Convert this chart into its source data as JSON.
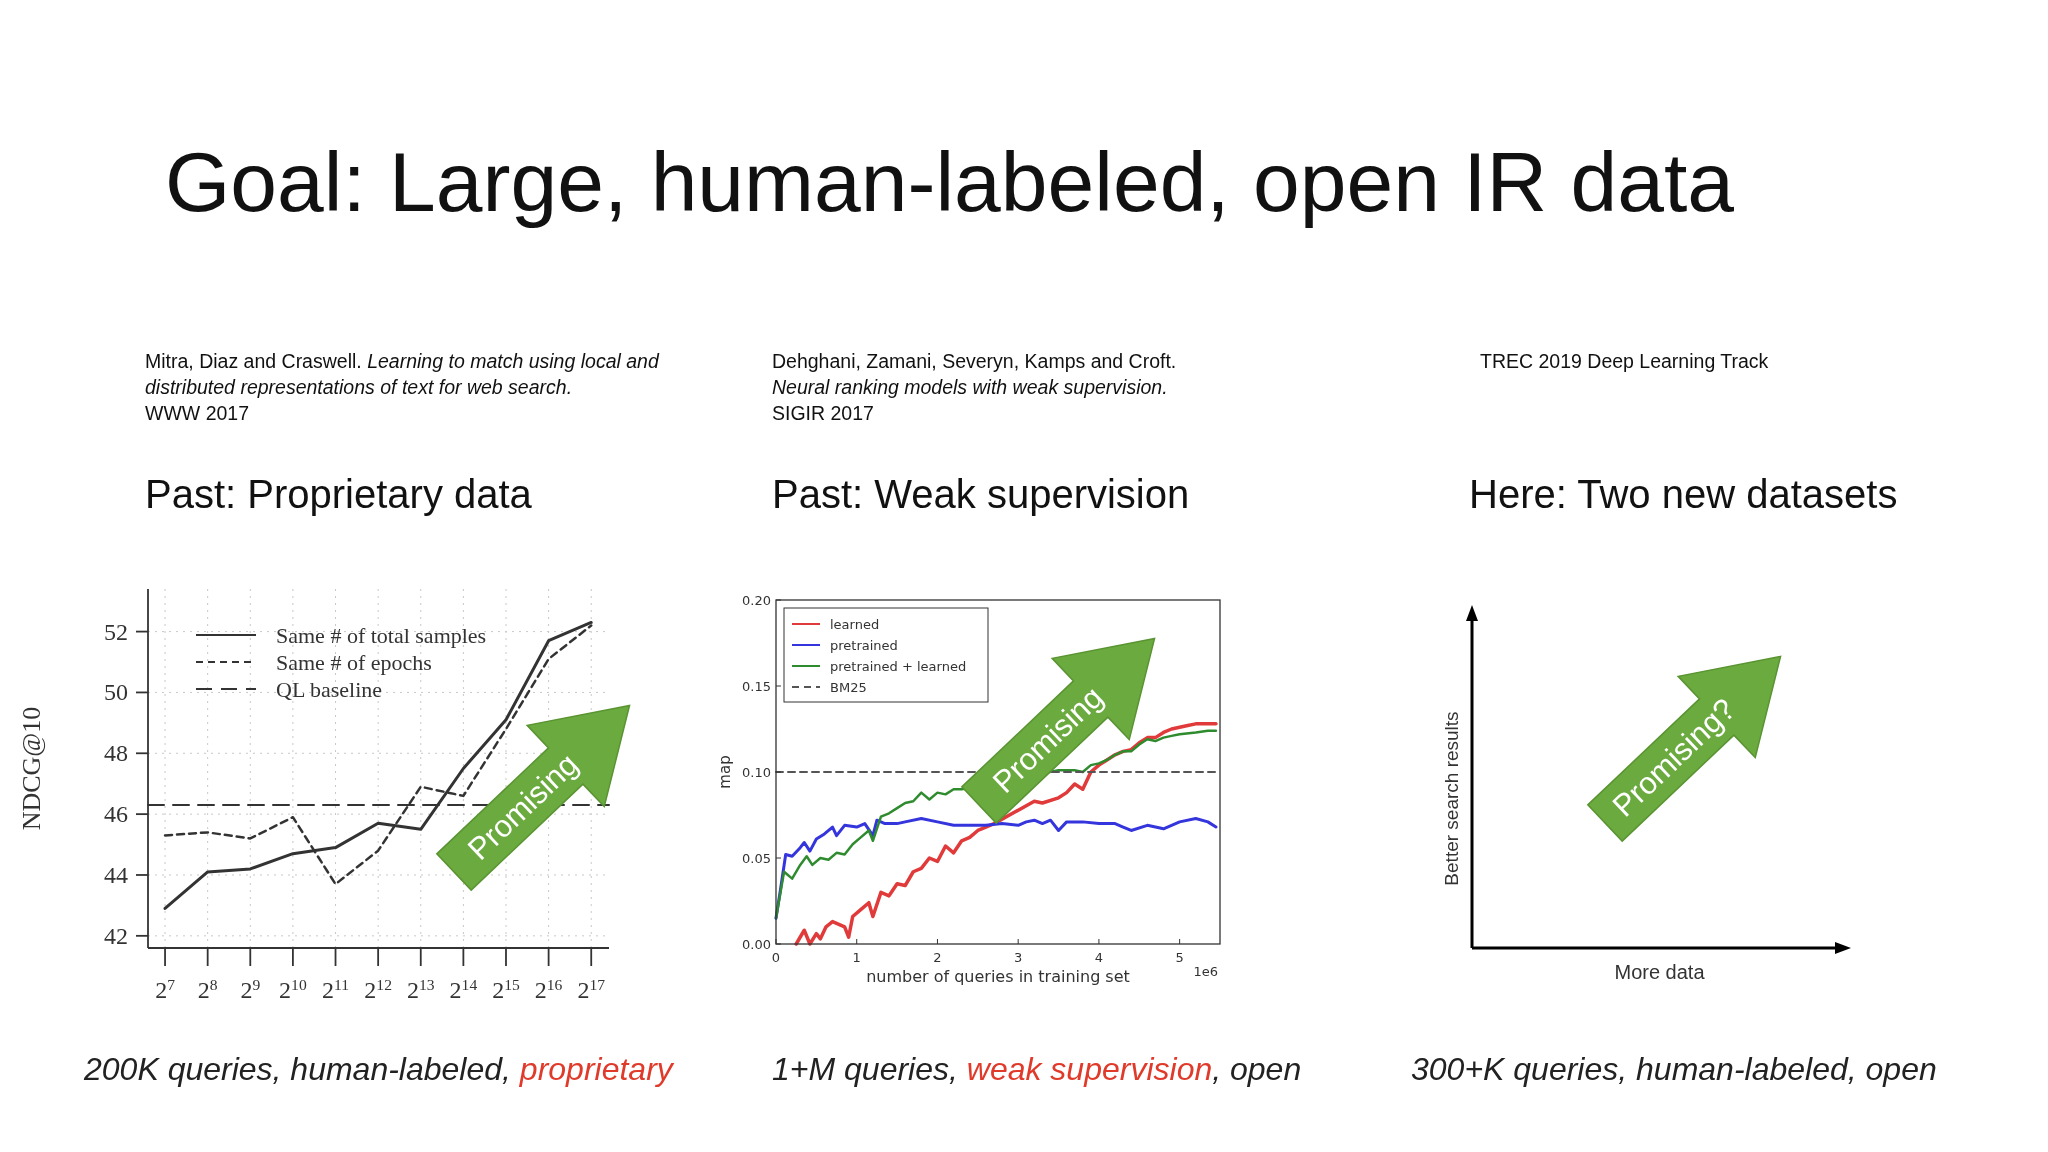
{
  "chart_data": [
    {
      "type": "line",
      "title": "Goal: Large, human-labeled, open IR data",
      "subtitle": "Past: Proprietary data",
      "ylabel": "NDCG@10",
      "annotations": [
        "Mitra, Diaz and Craswell.",
        "Learning to match using local and distributed representations of text for web search.",
        "WWW 2017",
        "200K queries, human-labeled, ",
        "proprietary",
        "Promising"
      ],
      "x": [
        128,
        256,
        512,
        1024,
        2048,
        4096,
        8192,
        16384,
        32768,
        65536,
        131072
      ],
      "log": "x",
      "xlim": [
        97,
        175000
      ],
      "ylim": [
        41.6,
        53.4
      ],
      "xticks": [
        {
          "value": 128,
          "label": "2$^{7}$"
        },
        {
          "value": 256,
          "label": "2$^{8}$"
        },
        {
          "value": 512,
          "label": "2$^{9}$"
        },
        {
          "value": 1024,
          "label": "2$^{10}$"
        },
        {
          "value": 2048,
          "label": "2$^{11}$"
        },
        {
          "value": 4096,
          "label": "2$^{12}$"
        },
        {
          "value": 8192,
          "label": "2$^{13}$"
        },
        {
          "value": 16384,
          "label": "2$^{14}$"
        },
        {
          "value": 32768,
          "label": "2$^{15}$"
        },
        {
          "value": 65536,
          "label": "2$^{16}$"
        },
        {
          "value": 131072,
          "label": "2$^{17}$"
        }
      ],
      "yticks": [
        42,
        44,
        46,
        48,
        50,
        52
      ],
      "grid": true,
      "legend": "top left",
      "marker": "none",
      "series": [
        {
          "name": "Same # of total samples",
          "color": "#333333",
          "line_style": "solid",
          "values": [
            42.9,
            44.1,
            44.2,
            44.7,
            44.9,
            45.7,
            45.5,
            47.5,
            49.1,
            51.7,
            52.3
          ]
        },
        {
          "name": "Same # of epochs",
          "color": "#333333",
          "line_style": "dashed",
          "values": [
            45.3,
            45.4,
            45.2,
            45.9,
            43.7,
            44.8,
            46.9,
            46.6,
            48.8,
            51.1,
            52.2
          ]
        },
        {
          "name": "QL baseline",
          "color": "#333333",
          "line_style": "dashed",
          "x": [
            97,
            175000
          ],
          "values": [
            46.3,
            46.3
          ]
        }
      ]
    },
    {
      "type": "line",
      "subtitle": "Past: Weak supervision",
      "xlabel": "number of queries in training set",
      "ylabel": "map",
      "annotations": [
        "Dehghani, Zamani, Severyn, Kamps and Croft.",
        "Neural ranking models with weak supervision.",
        "SIGIR 2017",
        "1+M queries, ",
        "weak supervision",
        ", open",
        "Promising",
        "1e6"
      ],
      "xlim": [
        0,
        5.5
      ],
      "ylim": [
        0,
        0.2
      ],
      "xticks": [
        0,
        1,
        2,
        3,
        4,
        5
      ],
      "yticks": [
        {
          "value": 0,
          "label": "0.00"
        },
        {
          "value": 0.05,
          "label": "0.05"
        },
        {
          "value": 0.1,
          "label": "0.10"
        },
        {
          "value": 0.15,
          "label": "0.15"
        },
        {
          "value": 0.2,
          "label": "0.20"
        }
      ],
      "legend": "top left",
      "marker": "none",
      "series": [
        {
          "name": "learned",
          "color": "#e03a3a",
          "line_style": "solid",
          "x": [
            0.25,
            0.35,
            0.42,
            0.5,
            0.55,
            0.62,
            0.7,
            0.85,
            0.9,
            0.95,
            1.05,
            1.15,
            1.2,
            1.3,
            1.4,
            1.5,
            1.6,
            1.7,
            1.8,
            1.9,
            2.0,
            2.1,
            2.2,
            2.3,
            2.4,
            2.5,
            2.6,
            2.7,
            3.2,
            3.3,
            3.5,
            3.6,
            3.7,
            3.8,
            3.9,
            4.0,
            4.1,
            4.2,
            4.3,
            4.4,
            4.5,
            4.6,
            4.7,
            4.8,
            4.9,
            5.0,
            5.1,
            5.2,
            5.3,
            5.45
          ],
          "values": [
            0.0,
            0.008,
            0.0,
            0.006,
            0.003,
            0.01,
            0.013,
            0.01,
            0.004,
            0.016,
            0.02,
            0.024,
            0.016,
            0.03,
            0.028,
            0.035,
            0.034,
            0.042,
            0.044,
            0.05,
            0.048,
            0.057,
            0.053,
            0.06,
            0.062,
            0.066,
            0.068,
            0.07,
            0.083,
            0.082,
            0.085,
            0.088,
            0.093,
            0.09,
            0.1,
            0.104,
            0.107,
            0.11,
            0.112,
            0.113,
            0.117,
            0.12,
            0.12,
            0.123,
            0.125,
            0.126,
            0.127,
            0.128,
            0.128,
            0.128
          ]
        },
        {
          "name": "pretrained",
          "color": "#3535dd",
          "line_style": "solid",
          "x": [
            0,
            0.05,
            0.12,
            0.2,
            0.3,
            0.35,
            0.42,
            0.5,
            0.6,
            0.7,
            0.75,
            0.85,
            1.0,
            1.1,
            1.2,
            1.25,
            1.35,
            1.5,
            1.6,
            1.8,
            2.0,
            2.2,
            2.4,
            2.6,
            2.8,
            3.0,
            3.1,
            3.2,
            3.3,
            3.4,
            3.5,
            3.6,
            3.8,
            4.0,
            4.2,
            4.3,
            4.4,
            4.6,
            4.8,
            5.0,
            5.2,
            5.35,
            5.45
          ],
          "values": [
            0.015,
            0.03,
            0.052,
            0.051,
            0.056,
            0.059,
            0.054,
            0.061,
            0.064,
            0.068,
            0.063,
            0.069,
            0.068,
            0.07,
            0.063,
            0.072,
            0.07,
            0.07,
            0.071,
            0.073,
            0.071,
            0.069,
            0.069,
            0.069,
            0.07,
            0.069,
            0.071,
            0.072,
            0.07,
            0.072,
            0.066,
            0.071,
            0.071,
            0.07,
            0.07,
            0.068,
            0.066,
            0.069,
            0.067,
            0.071,
            0.073,
            0.071,
            0.068
          ]
        },
        {
          "name": "pretrained + learned",
          "color": "#2e8b2e",
          "line_style": "solid",
          "x": [
            0,
            0.1,
            0.2,
            0.3,
            0.38,
            0.45,
            0.55,
            0.65,
            0.75,
            0.85,
            0.95,
            1.05,
            1.15,
            1.2,
            1.3,
            1.4,
            1.5,
            1.6,
            1.7,
            1.8,
            1.9,
            2.0,
            2.1,
            2.2,
            2.3,
            3.5,
            3.7,
            3.8,
            3.9,
            4.0,
            4.1,
            4.2,
            4.3,
            4.4,
            4.5,
            4.6,
            4.7,
            4.8,
            4.9,
            5.0,
            5.2,
            5.35,
            5.45
          ],
          "values": [
            0.015,
            0.042,
            0.038,
            0.046,
            0.051,
            0.046,
            0.05,
            0.049,
            0.053,
            0.052,
            0.058,
            0.062,
            0.066,
            0.06,
            0.074,
            0.076,
            0.079,
            0.082,
            0.083,
            0.088,
            0.084,
            0.088,
            0.087,
            0.09,
            0.09,
            0.101,
            0.101,
            0.1,
            0.104,
            0.105,
            0.107,
            0.11,
            0.112,
            0.112,
            0.116,
            0.119,
            0.118,
            0.12,
            0.121,
            0.122,
            0.123,
            0.124,
            0.124
          ]
        },
        {
          "name": "BM25",
          "color": "#555555",
          "line_style": "dashed",
          "x": [
            0,
            5.5
          ],
          "values": [
            0.1,
            0.1
          ]
        }
      ]
    },
    {
      "type": "other",
      "subtitle": "Here: Two new datasets",
      "xlabel": "More data",
      "ylabel": "Better search results",
      "annotations": [
        "TREC 2019 Deep Learning Track",
        "300+K queries, human-labeled, open",
        "Promising?"
      ]
    }
  ]
}
